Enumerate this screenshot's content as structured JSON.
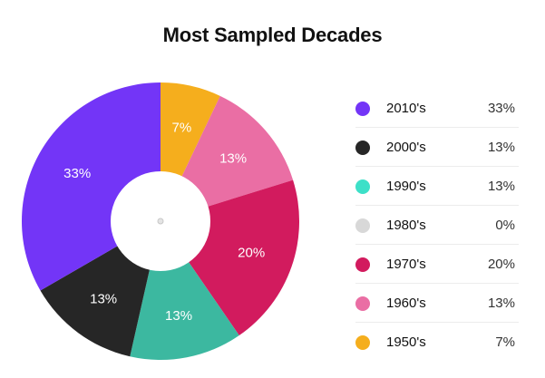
{
  "chart_data": {
    "type": "pie",
    "title": "Most Sampled Decades",
    "donut": true,
    "slices": [
      {
        "label": "1950's",
        "value": 7,
        "display": "7%",
        "color": "#f5ae1d"
      },
      {
        "label": "1960's",
        "value": 13,
        "display": "13%",
        "color": "#ea6ea4"
      },
      {
        "label": "1970's",
        "value": 20,
        "display": "20%",
        "color": "#d21b5e"
      },
      {
        "label": "1980's",
        "value": 0,
        "display": "0%",
        "color": "#d8d8d8"
      },
      {
        "label": "1990's",
        "value": 13,
        "display": "13%",
        "color": "#3cb8a0"
      },
      {
        "label": "2000's",
        "value": 13,
        "display": "13%",
        "color": "#262626"
      },
      {
        "label": "2010's",
        "value": 33,
        "display": "33%",
        "color": "#7335f7"
      }
    ],
    "legend": {
      "placement": "right",
      "entries": [
        {
          "label": "2010's",
          "value": "33%",
          "color": "#7335f7"
        },
        {
          "label": "2000's",
          "value": "13%",
          "color": "#262626"
        },
        {
          "label": "1990's",
          "value": "13%",
          "color": "#3de0c8"
        },
        {
          "label": "1980's",
          "value": "0%",
          "color": "#d8d8d8"
        },
        {
          "label": "1970's",
          "value": "20%",
          "color": "#d21b5e"
        },
        {
          "label": "1960's",
          "value": "13%",
          "color": "#ea6ea4"
        },
        {
          "label": "1950's",
          "value": "7%",
          "color": "#f5ae1d"
        }
      ]
    }
  }
}
